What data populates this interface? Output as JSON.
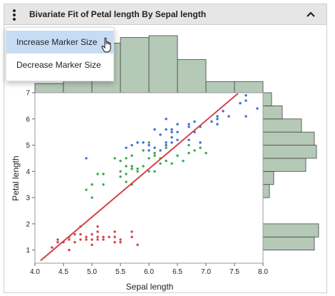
{
  "header": {
    "title": "Bivariate Fit of Petal length By Sepal length",
    "menu_icon": "kebab-vertical-icon",
    "collapse_icon": "chevron-up-icon"
  },
  "menu": {
    "items": [
      {
        "label": "Increase Marker Size",
        "highlighted": true
      },
      {
        "label": "Decrease Marker Size",
        "highlighted": false
      }
    ]
  },
  "cursor_icon": "hand-pointer-icon",
  "colors": {
    "header_bg": "#e6e6e6",
    "hist_fill": "#b5c9b7",
    "fit_line": "#d2424a",
    "setosa": "#d2424a",
    "versicolor": "#3aaa48",
    "virginica": "#3b6fd4",
    "menu_highlight": "#c6dcf4"
  },
  "chart_data": {
    "type": "scatter",
    "title": "",
    "xlabel": "Sepal length",
    "ylabel": "Petal length",
    "xlim": [
      4.0,
      8.0
    ],
    "ylim": [
      0.5,
      7.0
    ],
    "xticks": [
      "4.0",
      "4.5",
      "5.0",
      "5.5",
      "6.0",
      "6.5",
      "7.0",
      "7.5",
      "8.0"
    ],
    "yticks": [
      "1",
      "2",
      "3",
      "4",
      "5",
      "6",
      "7"
    ],
    "fit_line": {
      "x": [
        4.1,
        7.56
      ],
      "y": [
        0.6,
        6.97
      ]
    },
    "series": [
      {
        "key": "setosa",
        "points": [
          [
            4.3,
            1.1
          ],
          [
            4.4,
            1.3
          ],
          [
            4.4,
            1.4
          ],
          [
            4.5,
            1.3
          ],
          [
            4.6,
            1.0
          ],
          [
            4.6,
            1.4
          ],
          [
            4.6,
            1.5
          ],
          [
            4.7,
            1.3
          ],
          [
            4.7,
            1.6
          ],
          [
            4.8,
            1.4
          ],
          [
            4.8,
            1.6
          ],
          [
            4.8,
            1.9
          ],
          [
            4.9,
            1.4
          ],
          [
            4.9,
            1.5
          ],
          [
            5.0,
            1.2
          ],
          [
            5.0,
            1.4
          ],
          [
            5.0,
            1.6
          ],
          [
            5.1,
            1.4
          ],
          [
            5.1,
            1.5
          ],
          [
            5.1,
            1.7
          ],
          [
            5.1,
            1.9
          ],
          [
            5.2,
            1.4
          ],
          [
            5.2,
            1.5
          ],
          [
            5.3,
            1.5
          ],
          [
            5.4,
            1.3
          ],
          [
            5.4,
            1.5
          ],
          [
            5.4,
            1.7
          ],
          [
            5.5,
            1.3
          ],
          [
            5.5,
            1.4
          ],
          [
            5.7,
            1.5
          ],
          [
            5.7,
            1.7
          ],
          [
            5.8,
            1.2
          ]
        ]
      },
      {
        "key": "versicolor",
        "points": [
          [
            4.9,
            3.3
          ],
          [
            5.0,
            3.5
          ],
          [
            5.0,
            3.0
          ],
          [
            5.1,
            3.9
          ],
          [
            5.2,
            3.9
          ],
          [
            5.5,
            4.4
          ],
          [
            5.6,
            4.5
          ],
          [
            5.6,
            4.2
          ],
          [
            5.7,
            4.6
          ],
          [
            5.7,
            4.2
          ],
          [
            5.8,
            4.0
          ],
          [
            5.9,
            4.2
          ],
          [
            6.0,
            4.5
          ],
          [
            6.0,
            5.1
          ],
          [
            6.1,
            4.0
          ],
          [
            6.1,
            4.7
          ],
          [
            6.2,
            4.3
          ],
          [
            6.3,
            4.4
          ],
          [
            6.3,
            4.9
          ],
          [
            6.4,
            4.3
          ],
          [
            6.5,
            4.6
          ],
          [
            6.6,
            4.4
          ],
          [
            6.7,
            4.7
          ],
          [
            6.8,
            4.8
          ],
          [
            6.9,
            4.9
          ],
          [
            7.0,
            4.7
          ],
          [
            5.4,
            4.5
          ],
          [
            5.5,
            4.0
          ],
          [
            5.6,
            3.9
          ],
          [
            5.8,
            4.1
          ],
          [
            5.7,
            3.5
          ],
          [
            5.5,
            3.8
          ],
          [
            6.7,
            5.0
          ],
          [
            6.1,
            4.6
          ],
          [
            5.9,
            4.8
          ],
          [
            6.0,
            4.0
          ],
          [
            5.6,
            3.6
          ],
          [
            6.2,
            4.5
          ],
          [
            5.2,
            3.5
          ],
          [
            5.7,
            4.1
          ]
        ]
      },
      {
        "key": "virginica",
        "points": [
          [
            4.9,
            4.5
          ],
          [
            5.6,
            4.9
          ],
          [
            5.7,
            5.0
          ],
          [
            5.8,
            5.1
          ],
          [
            5.8,
            5.1
          ],
          [
            6.0,
            5.0
          ],
          [
            6.1,
            5.6
          ],
          [
            6.2,
            4.8
          ],
          [
            6.3,
            5.0
          ],
          [
            6.3,
            5.6
          ],
          [
            6.3,
            6.0
          ],
          [
            6.4,
            5.3
          ],
          [
            6.4,
            5.6
          ],
          [
            6.5,
            5.5
          ],
          [
            6.5,
            5.8
          ],
          [
            6.7,
            5.7
          ],
          [
            6.7,
            5.8
          ],
          [
            6.8,
            5.9
          ],
          [
            6.9,
            5.7
          ],
          [
            7.1,
            5.9
          ],
          [
            7.2,
            6.0
          ],
          [
            7.2,
            6.1
          ],
          [
            7.3,
            6.3
          ],
          [
            7.6,
            6.6
          ],
          [
            7.7,
            6.7
          ],
          [
            7.7,
            6.9
          ],
          [
            7.9,
            6.4
          ],
          [
            6.2,
            5.4
          ],
          [
            6.0,
            4.8
          ],
          [
            6.9,
            5.1
          ],
          [
            6.4,
            5.1
          ],
          [
            6.1,
            4.9
          ],
          [
            7.4,
            6.1
          ],
          [
            6.5,
            5.2
          ],
          [
            6.3,
            5.1
          ],
          [
            5.9,
            5.1
          ],
          [
            7.7,
            6.1
          ],
          [
            6.7,
            5.2
          ],
          [
            6.8,
            5.5
          ],
          [
            6.4,
            5.5
          ],
          [
            7.2,
            5.8
          ]
        ]
      }
    ],
    "top_histogram": {
      "bin_edges": [
        4.0,
        4.5,
        5.0,
        5.5,
        6.0,
        6.5,
        7.0,
        7.5,
        8.0
      ],
      "counts": [
        5,
        27,
        27,
        30,
        31,
        18,
        6,
        6
      ]
    },
    "right_histogram": {
      "bin_edges": [
        1.0,
        1.25,
        1.5,
        1.75,
        2.0,
        3.0,
        3.5,
        3.75,
        4.0,
        4.25,
        4.5,
        4.75,
        5.0,
        5.25,
        5.5,
        5.75,
        6.0,
        6.25,
        6.5,
        6.75
      ],
      "bins": [
        {
          "lo": 1.0,
          "hi": 1.5,
          "count": 24
        },
        {
          "lo": 1.5,
          "hi": 2.0,
          "count": 26
        },
        {
          "lo": 3.0,
          "hi": 3.5,
          "count": 3
        },
        {
          "lo": 3.5,
          "hi": 4.0,
          "count": 5
        },
        {
          "lo": 4.0,
          "hi": 4.5,
          "count": 20
        },
        {
          "lo": 4.5,
          "hi": 5.0,
          "count": 25
        },
        {
          "lo": 5.0,
          "hi": 5.5,
          "count": 24
        },
        {
          "lo": 5.5,
          "hi": 6.0,
          "count": 18
        },
        {
          "lo": 6.0,
          "hi": 6.5,
          "count": 9
        },
        {
          "lo": 6.5,
          "hi": 7.0,
          "count": 4
        }
      ]
    }
  }
}
